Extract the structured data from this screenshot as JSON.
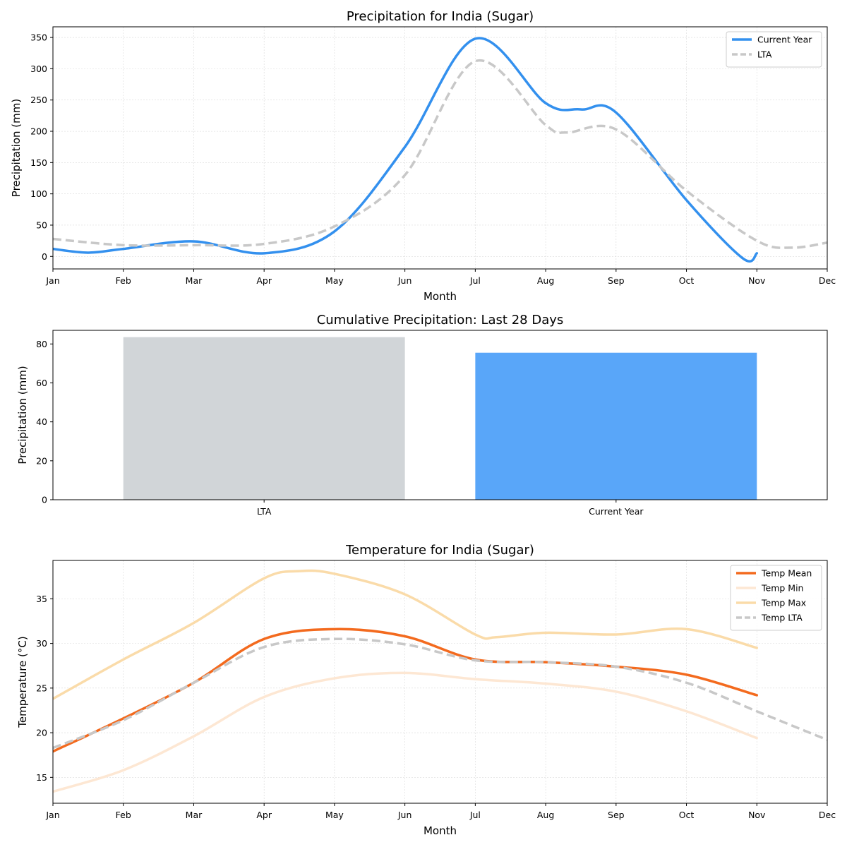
{
  "months": [
    "Jan",
    "Feb",
    "Mar",
    "Apr",
    "May",
    "Jun",
    "Jul",
    "Aug",
    "Sep",
    "Oct",
    "Nov",
    "Dec"
  ],
  "chart_data": [
    {
      "type": "line",
      "title": "Precipitation for India (Sugar)",
      "xlabel": "Month",
      "ylabel": "Precipitation (mm)",
      "ylim": [
        -20,
        367
      ],
      "yticks": [
        0,
        50,
        100,
        150,
        200,
        250,
        300,
        350
      ],
      "grid": true,
      "legend": "top-right",
      "series": [
        {
          "name": "Current Year",
          "color": "#3390EE",
          "dash": false,
          "x": [
            0,
            0.5,
            1,
            2,
            3,
            4,
            5,
            6,
            7,
            7.5,
            8,
            9,
            9.8,
            10
          ],
          "values": [
            12,
            6,
            12,
            24,
            5,
            40,
            175,
            348,
            245,
            235,
            230,
            90,
            -3,
            5
          ]
        },
        {
          "name": "LTA",
          "color": "#C8C8C8",
          "dash": true,
          "x": [
            0,
            1,
            2,
            3,
            4,
            5,
            6,
            7,
            7.3,
            8,
            9,
            10,
            10.5,
            11
          ],
          "values": [
            28,
            18,
            18,
            20,
            48,
            130,
            312,
            210,
            198,
            203,
            105,
            25,
            14,
            22
          ]
        }
      ]
    },
    {
      "type": "bar",
      "title": "Cumulative Precipitation: Last 28 Days",
      "xlabel": "",
      "ylabel": "Precipitation (mm)",
      "ylim": [
        0,
        87
      ],
      "yticks": [
        0,
        20,
        40,
        60,
        80
      ],
      "categories": [
        "LTA",
        "Current Year"
      ],
      "values": [
        83.5,
        75.5
      ],
      "colors": [
        "#D1D5D8",
        "#59A6F9"
      ]
    },
    {
      "type": "line",
      "title": "Temperature for India (Sugar)",
      "xlabel": "Month",
      "ylabel": "Temperature (°C)",
      "ylim": [
        12.1,
        39.3
      ],
      "yticks": [
        15,
        20,
        25,
        30,
        35
      ],
      "grid": true,
      "legend": "top-right",
      "series": [
        {
          "name": "Temp Mean",
          "color": "#F36A1E",
          "dash": false,
          "x": [
            0,
            1,
            2,
            3,
            4,
            5,
            6,
            7,
            8,
            9,
            10
          ],
          "values": [
            17.9,
            21.6,
            25.6,
            30.5,
            31.6,
            30.8,
            28.2,
            27.9,
            27.4,
            26.5,
            24.2
          ]
        },
        {
          "name": "Temp Min",
          "color": "#FDE7D3",
          "dash": false,
          "x": [
            0,
            1,
            2,
            3,
            4,
            5,
            6,
            7,
            8,
            9,
            10
          ],
          "values": [
            13.4,
            15.8,
            19.6,
            24.0,
            26.1,
            26.7,
            26.0,
            25.5,
            24.6,
            22.4,
            19.4
          ]
        },
        {
          "name": "Temp Max",
          "color": "#FADBA9",
          "dash": false,
          "x": [
            0,
            1,
            2,
            3,
            3.5,
            4,
            5,
            6,
            6.3,
            7,
            8,
            9,
            10
          ],
          "values": [
            23.8,
            28.2,
            32.3,
            37.3,
            38.1,
            37.8,
            35.5,
            31.0,
            30.7,
            31.2,
            31.0,
            31.6,
            29.5
          ]
        },
        {
          "name": "Temp LTA",
          "color": "#C8C8C8",
          "dash": true,
          "x": [
            0,
            1,
            2,
            3,
            4,
            5,
            6,
            7,
            8,
            9,
            10,
            11
          ],
          "values": [
            18.3,
            21.4,
            25.6,
            29.6,
            30.5,
            29.9,
            28.1,
            27.9,
            27.4,
            25.6,
            22.4,
            19.2
          ]
        }
      ]
    }
  ]
}
